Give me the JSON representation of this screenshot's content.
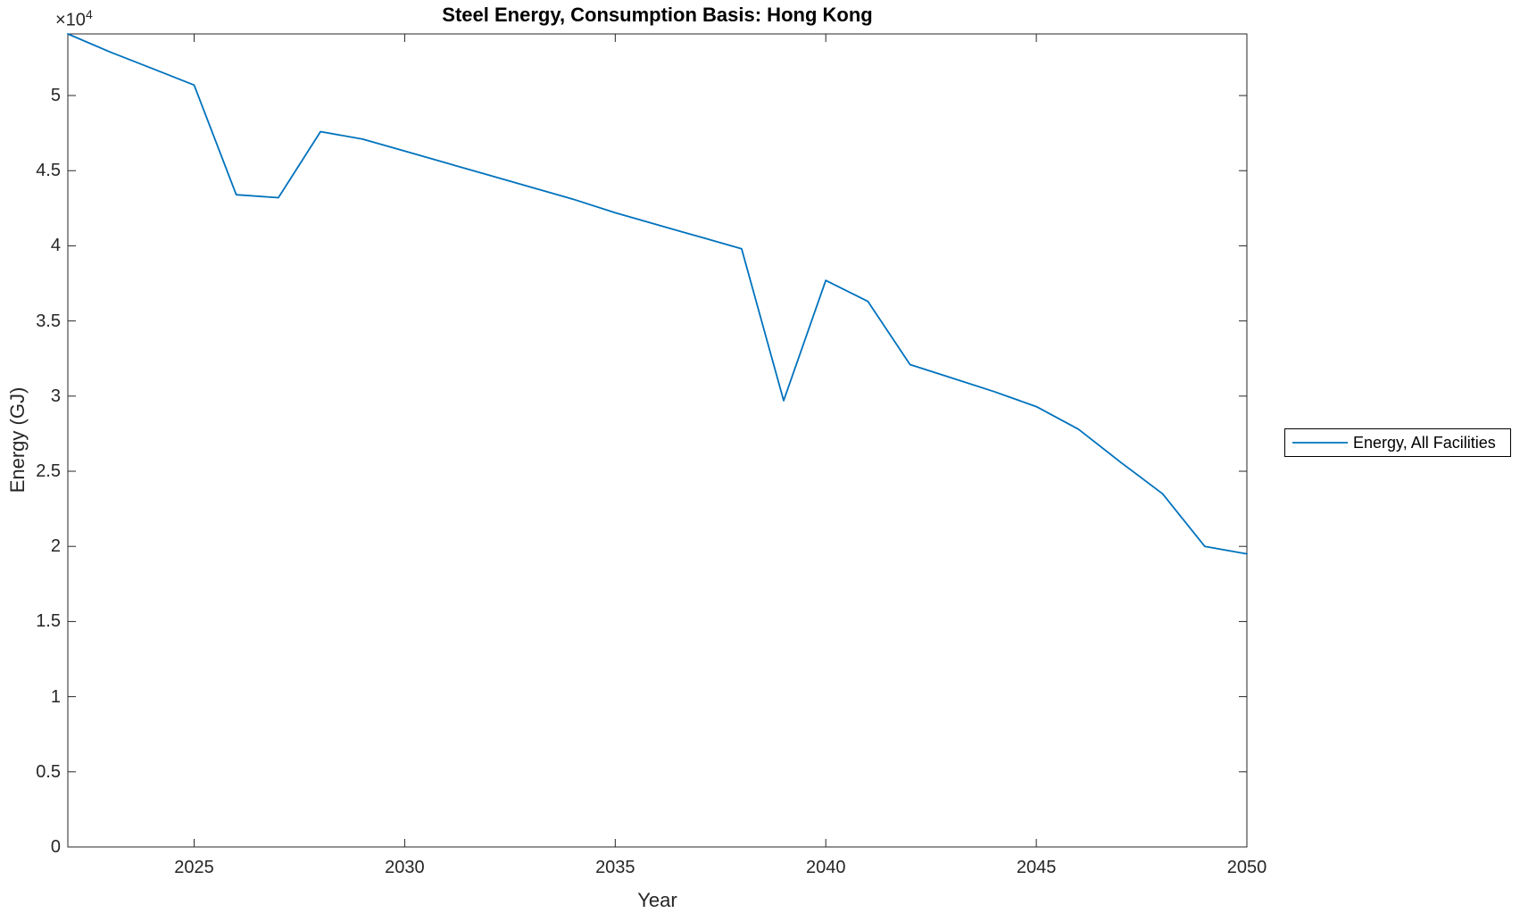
{
  "figure": {
    "background": "#ffffff",
    "axis_color": "#262626",
    "title_color": "#000000"
  },
  "chart_data": {
    "type": "line",
    "title": "Steel Energy, Consumption Basis: Hong Kong",
    "xlabel": "Year",
    "ylabel": "Energy (GJ)",
    "y_multiplier_base": "×10",
    "y_multiplier_exp": "4",
    "y_unit_multiplier": 10000,
    "xlim": [
      2022,
      2050
    ],
    "ylim": [
      0,
      5.41
    ],
    "x_ticks": [
      2025,
      2030,
      2035,
      2040,
      2045,
      2050
    ],
    "y_ticks": [
      0,
      0.5,
      1,
      1.5,
      2,
      2.5,
      3,
      3.5,
      4,
      4.5,
      5
    ],
    "grid": false,
    "legend": {
      "position": "outside-right",
      "entries": [
        {
          "label": "Energy, All Facilities",
          "color": "#0072BD"
        }
      ]
    },
    "series": [
      {
        "name": "Energy, All Facilities",
        "color": "#0072BD",
        "x": [
          2022,
          2023,
          2024,
          2025,
          2026,
          2027,
          2028,
          2029,
          2030,
          2031,
          2032,
          2033,
          2034,
          2035,
          2036,
          2037,
          2038,
          2039,
          2040,
          2041,
          2042,
          2043,
          2044,
          2045,
          2046,
          2047,
          2048,
          2049,
          2050
        ],
        "y": [
          5.41,
          5.29,
          5.18,
          5.07,
          4.34,
          4.32,
          4.76,
          4.71,
          4.63,
          4.55,
          4.47,
          4.39,
          4.31,
          4.22,
          4.14,
          4.06,
          3.98,
          2.97,
          3.77,
          3.63,
          3.21,
          3.12,
          3.03,
          2.93,
          2.78,
          2.56,
          2.35,
          2.0,
          1.95
        ]
      }
    ]
  }
}
